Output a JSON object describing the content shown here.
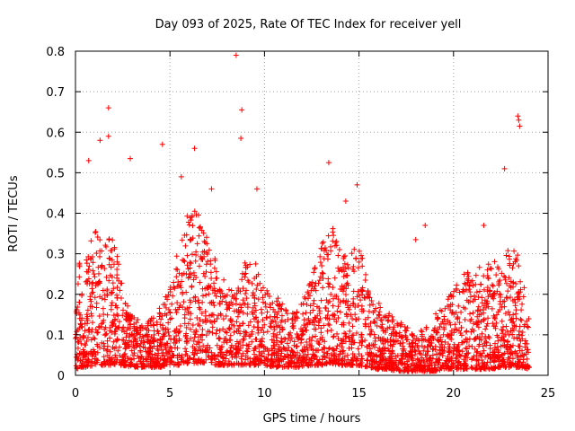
{
  "chart_data": {
    "type": "scatter",
    "title": "Day 093 of 2025, Rate Of TEC Index for receiver yell",
    "xlabel": "GPS time / hours",
    "ylabel": "ROTI / TECUs",
    "xlim": [
      0,
      25
    ],
    "ylim": [
      0,
      0.8
    ],
    "xticks": [
      0,
      5,
      10,
      15,
      20,
      25
    ],
    "yticks": [
      0,
      0.1,
      0.2,
      0.3,
      0.4,
      0.5,
      0.6,
      0.7,
      0.8
    ],
    "grid": true,
    "marker": "plus",
    "color": "#ff0000",
    "series": [
      {
        "name": "ROTI",
        "envelope": {
          "x": [
            0,
            0.5,
            1.0,
            1.5,
            2.0,
            2.5,
            3.0,
            3.5,
            4.0,
            4.5,
            5.0,
            5.5,
            6.0,
            6.5,
            7.0,
            7.5,
            8.0,
            8.5,
            9.0,
            9.5,
            10.0,
            10.5,
            11.0,
            11.5,
            12.0,
            12.5,
            13.0,
            13.5,
            14.0,
            14.5,
            15.0,
            15.5,
            16.0,
            16.5,
            17.0,
            17.5,
            18.0,
            18.5,
            19.0,
            19.5,
            20.0,
            20.5,
            21.0,
            21.5,
            22.0,
            22.5,
            23.0,
            23.5,
            24.0
          ],
          "typical_max": [
            0.32,
            0.28,
            0.36,
            0.33,
            0.37,
            0.22,
            0.15,
            0.13,
            0.14,
            0.17,
            0.22,
            0.33,
            0.42,
            0.4,
            0.34,
            0.3,
            0.22,
            0.2,
            0.3,
            0.28,
            0.22,
            0.2,
            0.18,
            0.16,
            0.18,
            0.24,
            0.32,
            0.38,
            0.32,
            0.3,
            0.33,
            0.22,
            0.18,
            0.16,
            0.14,
            0.12,
            0.1,
            0.12,
            0.15,
            0.17,
            0.22,
            0.25,
            0.26,
            0.27,
            0.28,
            0.3,
            0.32,
            0.3,
            0.15
          ],
          "baseline": [
            0.03,
            0.04,
            0.05,
            0.05,
            0.05,
            0.05,
            0.04,
            0.04,
            0.04,
            0.04,
            0.05,
            0.05,
            0.06,
            0.06,
            0.06,
            0.05,
            0.05,
            0.05,
            0.05,
            0.05,
            0.05,
            0.04,
            0.04,
            0.04,
            0.04,
            0.05,
            0.05,
            0.06,
            0.05,
            0.05,
            0.05,
            0.04,
            0.03,
            0.03,
            0.02,
            0.02,
            0.02,
            0.02,
            0.02,
            0.03,
            0.03,
            0.03,
            0.03,
            0.03,
            0.03,
            0.04,
            0.04,
            0.04,
            0.03
          ]
        },
        "outliers": [
          {
            "x": 8.5,
            "y": 0.79
          },
          {
            "x": 8.8,
            "y": 0.655
          },
          {
            "x": 8.75,
            "y": 0.585
          },
          {
            "x": 1.75,
            "y": 0.66
          },
          {
            "x": 1.75,
            "y": 0.59
          },
          {
            "x": 1.3,
            "y": 0.58
          },
          {
            "x": 2.9,
            "y": 0.535
          },
          {
            "x": 4.6,
            "y": 0.57
          },
          {
            "x": 23.4,
            "y": 0.64
          },
          {
            "x": 23.45,
            "y": 0.63
          },
          {
            "x": 23.5,
            "y": 0.615
          },
          {
            "x": 22.7,
            "y": 0.51
          },
          {
            "x": 13.4,
            "y": 0.525
          },
          {
            "x": 14.9,
            "y": 0.47
          },
          {
            "x": 0.7,
            "y": 0.53
          },
          {
            "x": 6.3,
            "y": 0.56
          },
          {
            "x": 5.6,
            "y": 0.49
          },
          {
            "x": 7.2,
            "y": 0.46
          },
          {
            "x": 9.6,
            "y": 0.46
          },
          {
            "x": 14.3,
            "y": 0.43
          },
          {
            "x": 18.0,
            "y": 0.335
          },
          {
            "x": 18.5,
            "y": 0.37
          },
          {
            "x": 21.6,
            "y": 0.37
          }
        ]
      }
    ]
  }
}
